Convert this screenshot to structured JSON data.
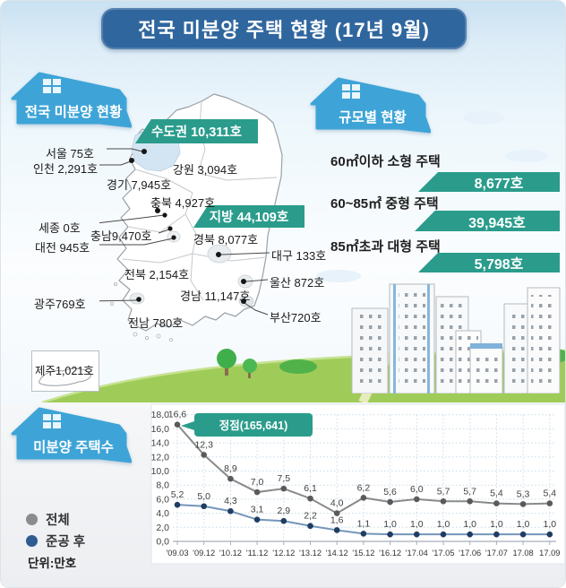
{
  "title": "전국 미분양 주택 현황 (17년 9월)",
  "national": {
    "badge": "전국 미분양 현황",
    "capital_banner": "수도권 10,311호",
    "provincial_banner": "지방 44,109호",
    "regions": {
      "seoul": "서울  75호",
      "incheon": "인천 2,291호",
      "gyeonggi": "경기 7,945호",
      "gangwon": "강원 3,094호",
      "chungbuk": "충북 4,927호",
      "sejong": "세종 0호",
      "chungnam": "충남9,470호",
      "daejeon": "대전 945호",
      "jeonbuk": "전북 2,154호",
      "gyeongbuk": "경북 8,077호",
      "daegu": "대구 133호",
      "gwangju": "광주769호",
      "jeonnam": "전남 780호",
      "gyeongnam": "경남 11,147호",
      "ulsan": "울산 872호",
      "busan": "부산720호",
      "jeju": "제주1,021호"
    }
  },
  "by_size": {
    "badge": "규모별 현황",
    "items": [
      {
        "label": "60㎡이하 소형 주택",
        "value": "8,677호"
      },
      {
        "label": "60~85㎡ 중형 주택",
        "value": "39,945호"
      },
      {
        "label": "85㎡초과 대형 주택",
        "value": "5,798호"
      }
    ]
  },
  "trend": {
    "badge": "미분양 주택수",
    "legend": [
      {
        "label": "전체",
        "color": "#8c8c8c"
      },
      {
        "label": "준공 후",
        "color": "#2d5c92"
      }
    ],
    "unit": "단위:만호",
    "peak_callout": "정점(165,641)"
  },
  "colors": {
    "header_bg": "#30669e",
    "badge_blue": "#3ea4d7",
    "banner_teal": "#2b9c8c",
    "grass_green": "#9fcc58",
    "series_total": "#8a8a8a",
    "series_completed": "#7496ba"
  },
  "chart_data": {
    "type": "line",
    "x": [
      "'09.03",
      "'09.12",
      "'10.12",
      "'11.12",
      "'12.12",
      "'13.12",
      "'14.12",
      "'15.12",
      "'16.12",
      "'17.04",
      "'17.05",
      "'17.06",
      "'17.07",
      "17.08",
      "17.09"
    ],
    "series": [
      {
        "name": "전체",
        "color": "#8a8a8a",
        "point_color": "#5a5a5a",
        "values": [
          16.6,
          12.3,
          8.9,
          7.0,
          7.5,
          6.1,
          4.0,
          6.2,
          5.6,
          6.0,
          5.7,
          5.7,
          5.4,
          5.3,
          5.4
        ]
      },
      {
        "name": "준공 후",
        "color": "#7496ba",
        "point_color": "#1f3d63",
        "values": [
          5.2,
          5.0,
          4.3,
          3.1,
          2.9,
          2.2,
          1.6,
          1.1,
          1.0,
          1.0,
          1.0,
          1.0,
          1.0,
          1.0,
          1.0
        ]
      }
    ],
    "ylim": [
      0,
      18
    ],
    "ytick_step": 2,
    "decimal_comma": true,
    "grid": true,
    "annotation": "정점(165,641)",
    "legend_position": "left",
    "title": "미분양 주택수 (단위:만호)"
  }
}
